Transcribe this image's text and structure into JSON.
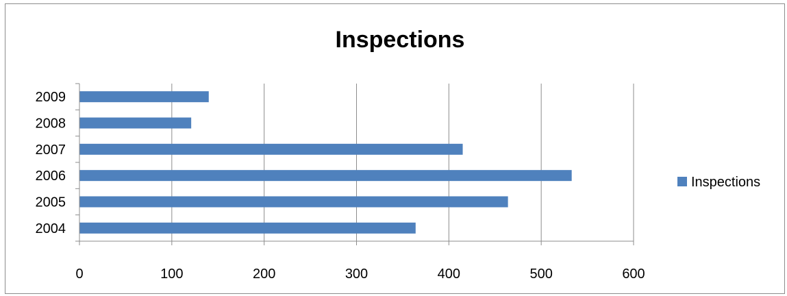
{
  "chart_data": {
    "type": "bar",
    "orientation": "horizontal",
    "title": "Inspections",
    "categories": [
      "2004",
      "2005",
      "2006",
      "2007",
      "2008",
      "2009"
    ],
    "series": [
      {
        "name": "Inspections",
        "values": [
          364,
          464,
          533,
          415,
          121,
          140
        ],
        "color": "#4f81bd"
      }
    ],
    "xlim": [
      0,
      600
    ],
    "x_ticks": [
      "0",
      "100",
      "200",
      "300",
      "400",
      "500",
      "600"
    ],
    "grid": "vertical major gridlines",
    "legend_position": "right"
  }
}
